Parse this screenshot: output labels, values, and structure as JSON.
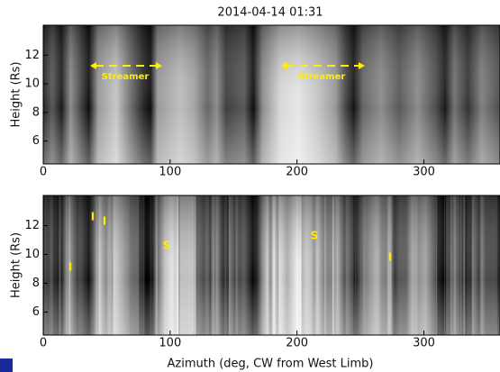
{
  "chart_data": [
    {
      "type": "image",
      "title": "2014-04-14 01:31",
      "ylabel": "Height (Rs)",
      "xlim": [
        0,
        360
      ],
      "xticks": [
        0,
        100,
        200,
        300
      ],
      "ylim": [
        4.4,
        14.1
      ],
      "yticks": [
        6,
        8,
        10,
        12
      ],
      "annotations": [
        "Streamer",
        "Streamer"
      ]
    },
    {
      "type": "image",
      "ylabel": "Height (Rs)",
      "xlabel": "Azimuth (deg, CW from West Limb)",
      "xlim": [
        0,
        360
      ],
      "xticks": [
        0,
        100,
        200,
        300
      ],
      "ylim": [
        4.4,
        14.1
      ],
      "yticks": [
        6,
        8,
        10,
        12
      ],
      "annotations": [
        "I",
        "I",
        "I",
        "S",
        "S",
        "I"
      ]
    }
  ]
}
